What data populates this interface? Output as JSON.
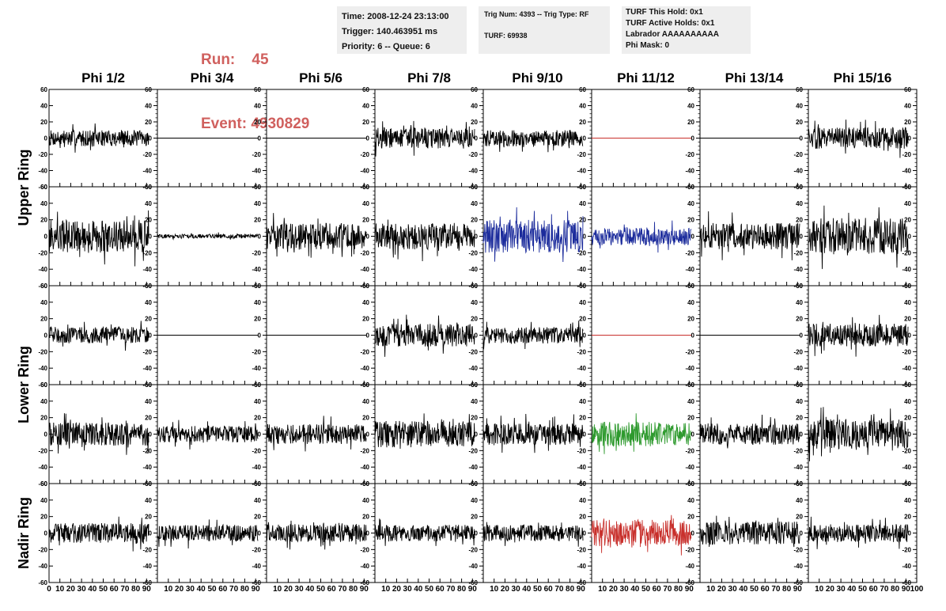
{
  "header": {
    "run_label": "Run:",
    "run_value": "45",
    "event_label": "Event:",
    "event_value": "4930829",
    "time": "Time: 2008-12-24 23:13:00",
    "trigger": "Trigger: 140.463951 ms",
    "priority_queue": "Priority: 6 -- Queue: 6",
    "trig_num_type": "Trig Num: 4393 -- Trig Type: RF",
    "turf": "TURF: 69938",
    "turf_this_hold": "TURF This Hold: 0x1",
    "turf_active_holds": "TURF Active Holds: 0x1",
    "labrador": "Labrador AAAAAAAAAA",
    "phi_mask": "Phi Mask: 0"
  },
  "colors": {
    "header_red": "#d0605e",
    "trace_black": "#000000",
    "trace_blue": "#1c2c9c",
    "trace_green": "#2e9a2e",
    "trace_red": "#c8302c",
    "info_box_bg": "#eeeeee"
  },
  "chart_data": {
    "type": "line",
    "columns": [
      "Phi 1/2",
      "Phi 3/4",
      "Phi 5/6",
      "Phi 7/8",
      "Phi 9/10",
      "Phi 11/12",
      "Phi 13/14",
      "Phi 15/16"
    ],
    "ring_labels": [
      "Upper Ring",
      "Lower Ring",
      "Nadir Ring"
    ],
    "xlim": [
      0,
      100
    ],
    "ylim": [
      -60,
      60
    ],
    "x_ticks": [
      0,
      10,
      20,
      30,
      40,
      50,
      60,
      70,
      80,
      90,
      100
    ],
    "y_ticks": [
      60,
      40,
      20,
      0,
      -20,
      -40,
      -60
    ],
    "grid": false,
    "x_sample_range": [
      0,
      92
    ],
    "panels": [
      {
        "row": 0,
        "col": 0,
        "color": "black",
        "amplitude": 10
      },
      {
        "row": 0,
        "col": 1,
        "color": "black",
        "amplitude": 0
      },
      {
        "row": 0,
        "col": 2,
        "color": "black",
        "amplitude": 0
      },
      {
        "row": 0,
        "col": 3,
        "color": "black",
        "amplitude": 13
      },
      {
        "row": 0,
        "col": 4,
        "color": "black",
        "amplitude": 10
      },
      {
        "row": 0,
        "col": 5,
        "color": "red",
        "amplitude": 0
      },
      {
        "row": 0,
        "col": 6,
        "color": "black",
        "amplitude": 0
      },
      {
        "row": 0,
        "col": 7,
        "color": "black",
        "amplitude": 13
      },
      {
        "row": 1,
        "col": 0,
        "color": "black",
        "amplitude": 20
      },
      {
        "row": 1,
        "col": 1,
        "color": "black",
        "amplitude": 2.5
      },
      {
        "row": 1,
        "col": 2,
        "color": "black",
        "amplitude": 16
      },
      {
        "row": 1,
        "col": 3,
        "color": "black",
        "amplitude": 16
      },
      {
        "row": 1,
        "col": 4,
        "color": "blue",
        "amplitude": 20
      },
      {
        "row": 1,
        "col": 5,
        "color": "blue",
        "amplitude": 11
      },
      {
        "row": 1,
        "col": 6,
        "color": "black",
        "amplitude": 16
      },
      {
        "row": 1,
        "col": 7,
        "color": "black",
        "amplitude": 22
      },
      {
        "row": 2,
        "col": 0,
        "color": "black",
        "amplitude": 10
      },
      {
        "row": 2,
        "col": 1,
        "color": "black",
        "amplitude": 0
      },
      {
        "row": 2,
        "col": 2,
        "color": "black",
        "amplitude": 0
      },
      {
        "row": 2,
        "col": 3,
        "color": "black",
        "amplitude": 14
      },
      {
        "row": 2,
        "col": 4,
        "color": "black",
        "amplitude": 10
      },
      {
        "row": 2,
        "col": 5,
        "color": "red",
        "amplitude": 0
      },
      {
        "row": 2,
        "col": 6,
        "color": "black",
        "amplitude": 0
      },
      {
        "row": 2,
        "col": 7,
        "color": "black",
        "amplitude": 14
      },
      {
        "row": 3,
        "col": 0,
        "color": "black",
        "amplitude": 14
      },
      {
        "row": 3,
        "col": 1,
        "color": "black",
        "amplitude": 10
      },
      {
        "row": 3,
        "col": 2,
        "color": "black",
        "amplitude": 12
      },
      {
        "row": 3,
        "col": 3,
        "color": "black",
        "amplitude": 16
      },
      {
        "row": 3,
        "col": 4,
        "color": "black",
        "amplitude": 13
      },
      {
        "row": 3,
        "col": 5,
        "color": "green",
        "amplitude": 15
      },
      {
        "row": 3,
        "col": 6,
        "color": "black",
        "amplitude": 13
      },
      {
        "row": 3,
        "col": 7,
        "color": "black",
        "amplitude": 18
      },
      {
        "row": 4,
        "col": 0,
        "color": "black",
        "amplitude": 12
      },
      {
        "row": 4,
        "col": 1,
        "color": "black",
        "amplitude": 10
      },
      {
        "row": 4,
        "col": 2,
        "color": "black",
        "amplitude": 11
      },
      {
        "row": 4,
        "col": 3,
        "color": "black",
        "amplitude": 10
      },
      {
        "row": 4,
        "col": 4,
        "color": "black",
        "amplitude": 10
      },
      {
        "row": 4,
        "col": 5,
        "color": "red",
        "amplitude": 16
      },
      {
        "row": 4,
        "col": 6,
        "color": "black",
        "amplitude": 14
      },
      {
        "row": 4,
        "col": 7,
        "color": "black",
        "amplitude": 11
      }
    ]
  }
}
